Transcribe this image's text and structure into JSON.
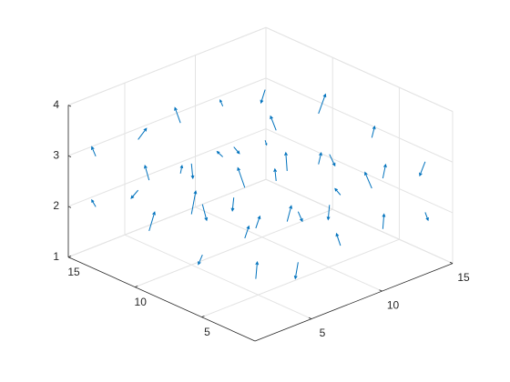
{
  "chart_data": {
    "type": "quiver3",
    "color": "#0072bd",
    "grid": true,
    "xlim": [
      1,
      15
    ],
    "ylim": [
      1,
      15
    ],
    "zlim": [
      1,
      4
    ],
    "xticks": [
      5,
      10,
      15
    ],
    "yticks": [
      5,
      10,
      15
    ],
    "zticks": [
      1,
      2,
      3,
      4
    ],
    "x": [
      2,
      2,
      2,
      2,
      5,
      5,
      5,
      5,
      8,
      8,
      8,
      8,
      11,
      11,
      11,
      11,
      14,
      14,
      14,
      14,
      2,
      2,
      2,
      2,
      5,
      5,
      5,
      5,
      8,
      8,
      8,
      8,
      11,
      11,
      11,
      11,
      14,
      14,
      14,
      14
    ],
    "y": [
      2,
      6,
      10,
      14,
      2,
      6,
      10,
      14,
      2,
      6,
      10,
      14,
      2,
      6,
      10,
      14,
      2,
      6,
      10,
      14,
      2,
      6,
      10,
      14,
      2,
      6,
      10,
      14,
      2,
      6,
      10,
      14,
      2,
      6,
      10,
      14,
      2,
      6,
      10,
      14
    ],
    "z": [
      2,
      2,
      2,
      2,
      2,
      2,
      2,
      2,
      2,
      2,
      2,
      2,
      2,
      2,
      2,
      2,
      2,
      2,
      2,
      2,
      3,
      3,
      3,
      3,
      3,
      3,
      3,
      3,
      3,
      3,
      3,
      3,
      3,
      3,
      3,
      3,
      3,
      3,
      3,
      3
    ],
    "u": [
      0.2,
      -0.1,
      0.3,
      0,
      -0.2,
      0.1,
      0.4,
      -0.3,
      0,
      0.2,
      -0.1,
      0.3,
      -0.2,
      0,
      0.1,
      -0.4,
      0.3,
      -0.2,
      0,
      0.1,
      0.1,
      0.3,
      -0.2,
      0,
      0.2,
      -0.3,
      0.1,
      0.4,
      -0.1,
      0,
      0.3,
      -0.2,
      0.2,
      0.1,
      -0.3,
      0,
      -0.1,
      0.2,
      0.4,
      -0.2
    ],
    "v": [
      0.1,
      0.2,
      -0.1,
      0.3,
      0,
      -0.2,
      0.1,
      0.2,
      0.3,
      -0.1,
      0,
      0.2,
      -0.3,
      0.1,
      0.2,
      0,
      0.1,
      0.3,
      -0.2,
      0,
      -0.2,
      0,
      0.1,
      0.3,
      -0.1,
      0.2,
      0,
      -0.2,
      0.3,
      0.1,
      -0.1,
      0.2,
      0,
      -0.3,
      0.1,
      0.2,
      0.3,
      0,
      -0.1,
      0.1
    ],
    "w": [
      0.3,
      -0.2,
      0.35,
      0.1,
      -0.3,
      0.25,
      0.4,
      -0.15,
      0.2,
      0.3,
      -0.25,
      0.1,
      0.35,
      -0.3,
      0.2,
      0.15,
      -0.2,
      0.3,
      0.25,
      -0.1,
      0.25,
      -0.35,
      0.3,
      0.15,
      -0.2,
      0.4,
      -0.3,
      0.2,
      0.1,
      0.35,
      -0.15,
      0.3,
      0.25,
      -0.2,
      0.3,
      0.1,
      -0.3,
      0.2,
      0.35,
      -0.25
    ]
  }
}
